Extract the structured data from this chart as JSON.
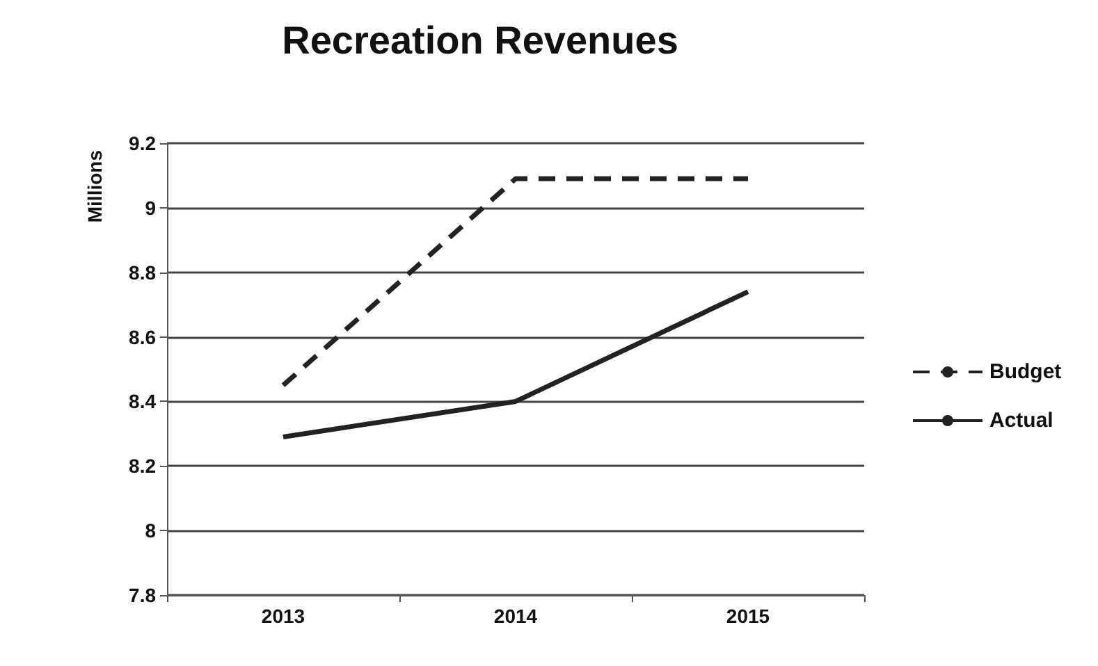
{
  "chart_data": {
    "type": "line",
    "title": "Recreation Revenues",
    "ylabel": "Millions",
    "categories": [
      "2013",
      "2014",
      "2015"
    ],
    "series": [
      {
        "name": "Budget",
        "color": "#222222",
        "values": [
          8.45,
          9.09,
          9.09
        ],
        "line_style": "dashed"
      },
      {
        "name": "Actual",
        "color": "#222222",
        "values": [
          8.29,
          8.4,
          8.74
        ],
        "line_style": "solid"
      }
    ],
    "ylim": [
      7.8,
      9.2
    ],
    "yticks": [
      7.8,
      8,
      8.2,
      8.4,
      8.6,
      8.8,
      9,
      9.2
    ],
    "grid": "y",
    "legend": "right",
    "marker": "none"
  }
}
